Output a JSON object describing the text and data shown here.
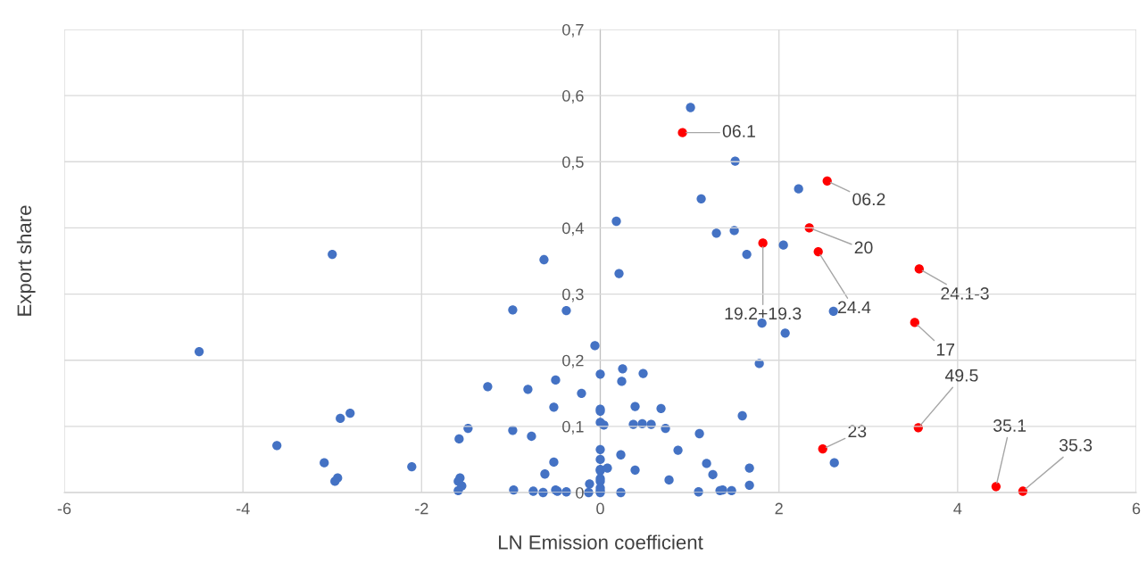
{
  "chart_data": {
    "type": "scatter",
    "xlabel": "LN Emission coefficient",
    "ylabel": "Export share",
    "xlim": [
      -6,
      6
    ],
    "xticks": [
      -6,
      -4,
      -2,
      0,
      2,
      4,
      6
    ],
    "ylim": [
      0,
      0.7
    ],
    "yticks": [
      {
        "value": 0,
        "label": "0"
      },
      {
        "value": 0.1,
        "label": "0,1"
      },
      {
        "value": 0.2,
        "label": "0,2"
      },
      {
        "value": 0.3,
        "label": "0,3"
      },
      {
        "value": 0.4,
        "label": "0,4"
      },
      {
        "value": 0.5,
        "label": "0,5"
      },
      {
        "value": 0.6,
        "label": "0,6"
      },
      {
        "value": 0.7,
        "label": "0,7"
      }
    ],
    "grid": true,
    "marker": "circle",
    "series": [
      {
        "color": "#4472c4",
        "x": [
          -3.0,
          -0.63,
          -0.98,
          -4.49,
          -1.26,
          -0.81,
          -2.8,
          -2.91,
          -1.48,
          -0.98,
          -1.58,
          -0.77,
          -3.62,
          -3.09,
          -2.94,
          -2.97,
          -2.11,
          -1.57,
          -1.59,
          -1.55,
          -1.59,
          -0.97,
          -0.75,
          -0.64,
          -0.62,
          -0.06,
          0.0,
          0.25,
          0.48,
          0.24,
          -0.5,
          -0.21,
          -0.52,
          0.0,
          0.0,
          0.39,
          0.68,
          0.0,
          0.04,
          0.37,
          0.47,
          0.57,
          0.73,
          0.0,
          0.23,
          0.87,
          0.0,
          -0.52,
          0.0,
          0.0,
          0.08,
          0.39,
          0.0,
          0.0,
          0.77,
          -0.12,
          0.0,
          0.0,
          0.0,
          -0.5,
          -0.48,
          -0.38,
          -0.13,
          0.23,
          1.78,
          1.59,
          1.11,
          1.19,
          1.67,
          1.26,
          1.67,
          1.1,
          1.34,
          1.37,
          1.47,
          2.62,
          1.01,
          1.51,
          1.13,
          2.22,
          0.18,
          1.3,
          1.5,
          2.05,
          1.64,
          0.21,
          -0.38,
          2.61,
          1.81,
          2.07
        ],
        "values": [
          0.36,
          0.352,
          0.276,
          0.213,
          0.16,
          0.156,
          0.12,
          0.112,
          0.097,
          0.094,
          0.081,
          0.085,
          0.071,
          0.045,
          0.022,
          0.017,
          0.039,
          0.022,
          0.017,
          0.01,
          0.003,
          0.004,
          0.002,
          0.0,
          0.028,
          0.222,
          0.179,
          0.187,
          0.18,
          0.168,
          0.17,
          0.15,
          0.129,
          0.126,
          0.123,
          0.13,
          0.127,
          0.106,
          0.102,
          0.103,
          0.104,
          0.103,
          0.097,
          0.065,
          0.057,
          0.064,
          0.05,
          0.046,
          0.035,
          0.033,
          0.037,
          0.034,
          0.021,
          0.017,
          0.019,
          0.013,
          0.007,
          0.003,
          0.0,
          0.004,
          0.002,
          0.001,
          0.0,
          0.0,
          0.195,
          0.116,
          0.089,
          0.044,
          0.037,
          0.027,
          0.011,
          0.001,
          0.003,
          0.004,
          0.003,
          0.045,
          0.582,
          0.501,
          0.444,
          0.459,
          0.41,
          0.392,
          0.396,
          0.374,
          0.36,
          0.331,
          0.275,
          0.274,
          0.256,
          0.241
        ]
      },
      {
        "color": "#ff0000",
        "x": [
          0.92,
          2.54,
          2.34,
          1.82,
          2.44,
          3.57,
          3.52,
          3.56,
          2.49,
          4.43,
          4.73
        ],
        "values": [
          0.544,
          0.471,
          0.4,
          0.377,
          0.364,
          0.338,
          0.257,
          0.098,
          0.066,
          0.009,
          0.002
        ]
      }
    ],
    "annotations": [
      {
        "text": "06.1",
        "x": 0.92,
        "y": 0.544
      },
      {
        "text": "06.2",
        "x": 2.54,
        "y": 0.471
      },
      {
        "text": "20",
        "x": 2.34,
        "y": 0.4
      },
      {
        "text": "19.2+19.3",
        "x": 1.82,
        "y": 0.377
      },
      {
        "text": "24.4",
        "x": 2.44,
        "y": 0.364
      },
      {
        "text": "24.1-3",
        "x": 3.57,
        "y": 0.338
      },
      {
        "text": "17",
        "x": 3.52,
        "y": 0.257
      },
      {
        "text": "49.5",
        "x": 3.56,
        "y": 0.098
      },
      {
        "text": "23",
        "x": 2.49,
        "y": 0.066
      },
      {
        "text": "35.1",
        "x": 4.43,
        "y": 0.009
      },
      {
        "text": "35.3",
        "x": 4.73,
        "y": 0.002
      }
    ]
  }
}
